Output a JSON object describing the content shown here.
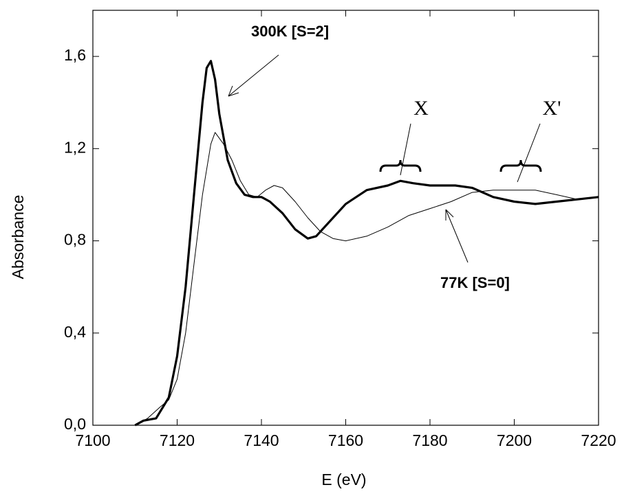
{
  "chart_data": {
    "type": "line",
    "x_label": "E (eV)",
    "y_label": "Absorbance",
    "xlim": [
      7100,
      7220
    ],
    "ylim": [
      0,
      1.8
    ],
    "xticks": [
      7100,
      7120,
      7140,
      7160,
      7180,
      7200,
      7220
    ],
    "yticks": [
      {
        "value": 0,
        "label": "0,0"
      },
      {
        "value": 0.4,
        "label": "0,4"
      },
      {
        "value": 0.8,
        "label": "0,8"
      },
      {
        "value": 1.2,
        "label": "1,2"
      },
      {
        "value": 1.6,
        "label": "1,6"
      }
    ],
    "annotations": [
      "X",
      "X'"
    ],
    "series": [
      {
        "name": "300K  [S=2]",
        "color": "#000000",
        "linewidth": 3.2,
        "x": [
          7110,
          7112,
          7115,
          7118,
          7120,
          7122,
          7124,
          7126,
          7127,
          7128,
          7129,
          7130,
          7132,
          7134,
          7136,
          7138,
          7140,
          7142,
          7145,
          7148,
          7151,
          7153,
          7156,
          7160,
          7165,
          7170,
          7173,
          7176,
          7180,
          7186,
          7190,
          7195,
          7200,
          7205,
          7210,
          7215,
          7220
        ],
        "values": [
          0,
          0.02,
          0.03,
          0.12,
          0.3,
          0.6,
          1.0,
          1.4,
          1.55,
          1.58,
          1.5,
          1.35,
          1.15,
          1.05,
          1.0,
          0.99,
          0.99,
          0.97,
          0.92,
          0.85,
          0.81,
          0.82,
          0.88,
          0.96,
          1.02,
          1.04,
          1.06,
          1.05,
          1.04,
          1.04,
          1.03,
          0.99,
          0.97,
          0.96,
          0.97,
          0.98,
          0.99
        ]
      },
      {
        "name": "77K  [S=0]",
        "color": "#000000",
        "linewidth": 1,
        "x": [
          7110,
          7113,
          7116,
          7118,
          7120,
          7122,
          7124,
          7126,
          7128,
          7129,
          7131,
          7133,
          7135,
          7137,
          7139,
          7141,
          7143,
          7145,
          7148,
          7151,
          7154,
          7157,
          7160,
          7165,
          7170,
          7175,
          7180,
          7185,
          7190,
          7195,
          7200,
          7205,
          7210,
          7215,
          7220
        ],
        "values": [
          0,
          0.03,
          0.08,
          0.11,
          0.2,
          0.4,
          0.7,
          1.0,
          1.22,
          1.27,
          1.22,
          1.15,
          1.06,
          1.0,
          0.99,
          1.02,
          1.04,
          1.03,
          0.97,
          0.9,
          0.84,
          0.81,
          0.8,
          0.82,
          0.86,
          0.91,
          0.94,
          0.97,
          1.01,
          1.02,
          1.02,
          1.02,
          1.0,
          0.98,
          0.99
        ]
      }
    ]
  }
}
